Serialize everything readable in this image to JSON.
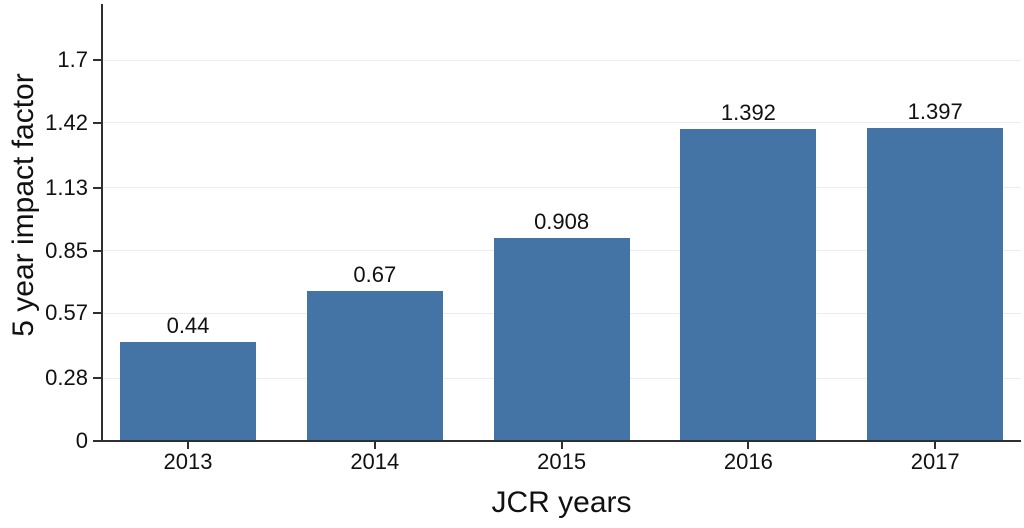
{
  "figure": {
    "background": "#ffffff",
    "bar_color": "#4473a5",
    "grid_color": "#ececec",
    "axis_color": "#2f2f2f",
    "text_color": "#111111"
  },
  "chart_data": {
    "type": "bar",
    "title": "",
    "xlabel": "JCR years",
    "ylabel": "5 year impact factor",
    "categories": [
      "2013",
      "2014",
      "2015",
      "2016",
      "2017"
    ],
    "values": [
      0.44,
      0.67,
      0.908,
      1.392,
      1.397
    ],
    "bar_labels": [
      "0.44",
      "0.67",
      "0.908",
      "1.392",
      "1.397"
    ],
    "yticks": [
      0,
      0.28,
      0.57,
      0.85,
      1.13,
      1.42,
      1.7
    ],
    "ytick_labels": [
      "0",
      "0.28",
      "0.57",
      "0.85",
      "1.13",
      "1.42",
      "1.7"
    ],
    "ylim": [
      0,
      1.95
    ],
    "grid": "horizontal",
    "legend": "none",
    "bar_labels_shown": true
  }
}
